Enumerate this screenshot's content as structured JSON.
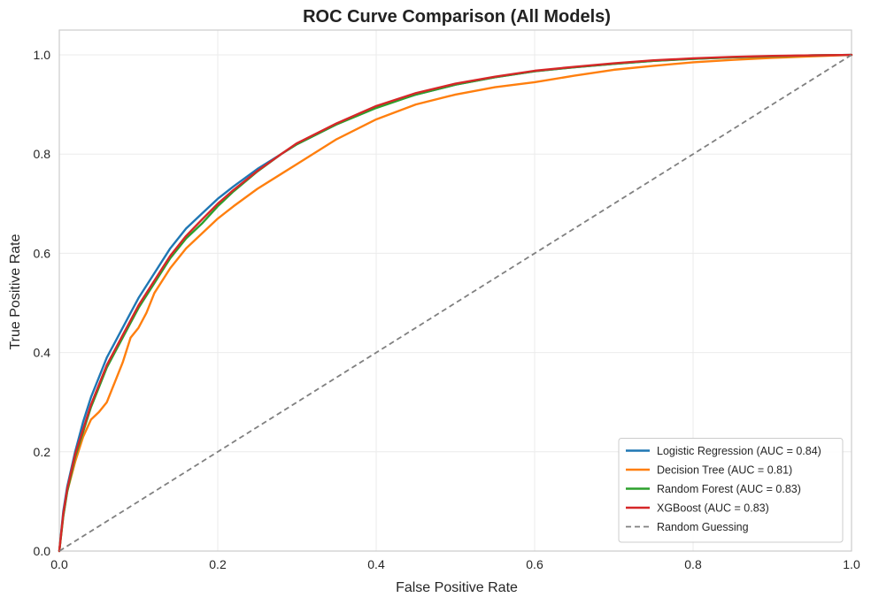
{
  "chart_data": {
    "type": "line",
    "title": "ROC Curve Comparison (All Models)",
    "xlabel": "False Positive Rate",
    "ylabel": "True Positive Rate",
    "xlim": [
      0.0,
      1.0
    ],
    "ylim": [
      0.0,
      1.05
    ],
    "xticks": [
      "0.0",
      "0.2",
      "0.4",
      "0.6",
      "0.8",
      "1.0"
    ],
    "yticks": [
      "0.0",
      "0.2",
      "0.4",
      "0.6",
      "0.8",
      "1.0"
    ],
    "grid": true,
    "legend_position": "bottom-right",
    "series": [
      {
        "name": "Logistic Regression (AUC = 0.84)",
        "color": "#1f77b4",
        "dashed": false,
        "x": [
          0,
          0.005,
          0.01,
          0.02,
          0.03,
          0.04,
          0.05,
          0.06,
          0.07,
          0.08,
          0.09,
          0.1,
          0.12,
          0.14,
          0.16,
          0.18,
          0.2,
          0.22,
          0.25,
          0.28,
          0.3,
          0.35,
          0.4,
          0.45,
          0.5,
          0.55,
          0.6,
          0.65,
          0.7,
          0.75,
          0.8,
          0.85,
          0.9,
          0.95,
          1.0
        ],
        "y": [
          0,
          0.08,
          0.13,
          0.2,
          0.26,
          0.31,
          0.35,
          0.39,
          0.42,
          0.45,
          0.48,
          0.51,
          0.56,
          0.61,
          0.65,
          0.68,
          0.71,
          0.735,
          0.77,
          0.8,
          0.82,
          0.86,
          0.895,
          0.92,
          0.94,
          0.955,
          0.967,
          0.975,
          0.982,
          0.988,
          0.992,
          0.995,
          0.997,
          0.999,
          1.0
        ]
      },
      {
        "name": "Decision Tree (AUC = 0.81)",
        "color": "#ff7f0e",
        "dashed": false,
        "x": [
          0,
          0.005,
          0.01,
          0.02,
          0.03,
          0.04,
          0.05,
          0.06,
          0.07,
          0.08,
          0.09,
          0.1,
          0.11,
          0.12,
          0.14,
          0.16,
          0.18,
          0.2,
          0.22,
          0.25,
          0.28,
          0.3,
          0.32,
          0.35,
          0.4,
          0.45,
          0.5,
          0.55,
          0.6,
          0.65,
          0.7,
          0.75,
          0.8,
          0.85,
          0.9,
          0.95,
          1.0
        ],
        "y": [
          0,
          0.07,
          0.12,
          0.18,
          0.23,
          0.265,
          0.28,
          0.3,
          0.34,
          0.38,
          0.43,
          0.45,
          0.48,
          0.52,
          0.57,
          0.61,
          0.64,
          0.67,
          0.695,
          0.73,
          0.76,
          0.78,
          0.8,
          0.83,
          0.87,
          0.9,
          0.92,
          0.935,
          0.945,
          0.958,
          0.97,
          0.978,
          0.985,
          0.99,
          0.994,
          0.997,
          1.0
        ]
      },
      {
        "name": "Random Forest (AUC = 0.83)",
        "color": "#2ca02c",
        "dashed": false,
        "x": [
          0,
          0.005,
          0.01,
          0.02,
          0.03,
          0.04,
          0.05,
          0.06,
          0.07,
          0.08,
          0.09,
          0.1,
          0.12,
          0.14,
          0.16,
          0.18,
          0.2,
          0.22,
          0.25,
          0.28,
          0.3,
          0.35,
          0.4,
          0.45,
          0.5,
          0.55,
          0.6,
          0.65,
          0.7,
          0.75,
          0.8,
          0.85,
          0.9,
          0.95,
          1.0
        ],
        "y": [
          0,
          0.07,
          0.12,
          0.19,
          0.24,
          0.29,
          0.33,
          0.37,
          0.4,
          0.43,
          0.46,
          0.49,
          0.54,
          0.59,
          0.63,
          0.66,
          0.695,
          0.725,
          0.765,
          0.8,
          0.82,
          0.86,
          0.893,
          0.92,
          0.94,
          0.955,
          0.967,
          0.975,
          0.982,
          0.988,
          0.992,
          0.995,
          0.997,
          0.999,
          1.0
        ]
      },
      {
        "name": "XGBoost (AUC = 0.83)",
        "color": "#d62728",
        "dashed": false,
        "x": [
          0,
          0.005,
          0.01,
          0.02,
          0.03,
          0.04,
          0.05,
          0.06,
          0.07,
          0.08,
          0.09,
          0.1,
          0.12,
          0.14,
          0.16,
          0.18,
          0.2,
          0.22,
          0.25,
          0.28,
          0.3,
          0.35,
          0.4,
          0.45,
          0.5,
          0.55,
          0.6,
          0.65,
          0.7,
          0.75,
          0.8,
          0.85,
          0.9,
          0.95,
          1.0
        ],
        "y": [
          0,
          0.075,
          0.125,
          0.195,
          0.245,
          0.295,
          0.335,
          0.375,
          0.405,
          0.435,
          0.465,
          0.495,
          0.545,
          0.595,
          0.635,
          0.668,
          0.7,
          0.728,
          0.766,
          0.8,
          0.822,
          0.862,
          0.897,
          0.923,
          0.942,
          0.956,
          0.968,
          0.976,
          0.983,
          0.989,
          0.993,
          0.996,
          0.998,
          0.999,
          1.0
        ]
      },
      {
        "name": "Random Guessing",
        "color": "#808080",
        "dashed": true,
        "x": [
          0,
          1
        ],
        "y": [
          0,
          1
        ]
      }
    ]
  }
}
